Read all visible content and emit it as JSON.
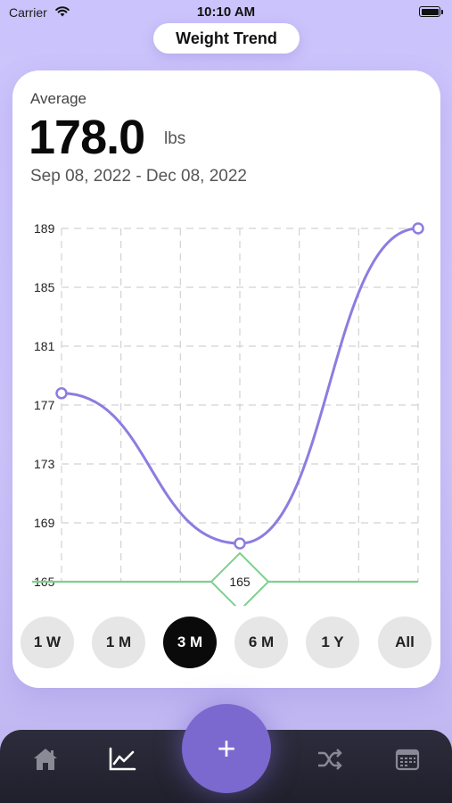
{
  "status_bar": {
    "carrier": "Carrier",
    "time": "10:10 AM"
  },
  "header": {
    "title": "Weight Trend"
  },
  "summary": {
    "label": "Average",
    "value": "178.0",
    "unit": "lbs",
    "date_range": "Sep 08, 2022 - Dec 08, 2022"
  },
  "chart_data": {
    "type": "line",
    "x": [
      0,
      3,
      6
    ],
    "series": [
      {
        "values": [
          177.8,
          167.6,
          189.0
        ]
      }
    ],
    "y_ticks": [
      165,
      169,
      173,
      177,
      181,
      185,
      189
    ],
    "ylim": [
      165,
      189
    ],
    "goal_line": {
      "value": 165,
      "label": "165",
      "color": "#7ed08e"
    },
    "line_color": "#8d7ce0",
    "grid": true
  },
  "range_buttons": [
    {
      "label": "1 W",
      "selected": false
    },
    {
      "label": "1 M",
      "selected": false
    },
    {
      "label": "3 M",
      "selected": true
    },
    {
      "label": "6 M",
      "selected": false
    },
    {
      "label": "1 Y",
      "selected": false
    },
    {
      "label": "All",
      "selected": false
    }
  ],
  "tab_bar": {
    "items": [
      "home-icon",
      "chart-icon",
      "shuffle-icon",
      "calendar-icon"
    ],
    "fab_label": "+",
    "fab_color": "#7b69cf"
  }
}
